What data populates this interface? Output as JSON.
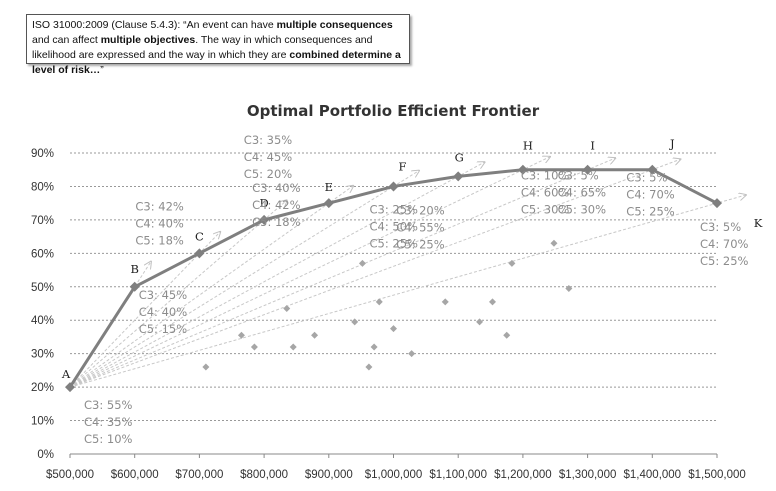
{
  "note": {
    "segments": [
      {
        "text": "ISO 31000:2009 (Clause 5.4.3): “An event can have ",
        "bold": false
      },
      {
        "text": "multiple consequences",
        "bold": true
      },
      {
        "text": " and can affect ",
        "bold": false
      },
      {
        "text": "multiple objectives",
        "bold": true
      },
      {
        "text": ". The way in which consequences and likelihood are expressed and the way in which they are ",
        "bold": false
      },
      {
        "text": "combined determine a level of risk…",
        "bold": true
      },
      {
        "text": "”",
        "bold": false
      }
    ]
  },
  "chart_data": {
    "type": "line",
    "title": "Optimal Portfolio Efficient Frontier",
    "xlabel": "",
    "ylabel": "",
    "xlim": [
      500000,
      1500000
    ],
    "ylim": [
      0,
      0.9
    ],
    "x_ticks": [
      500000,
      600000,
      700000,
      800000,
      900000,
      1000000,
      1100000,
      1200000,
      1300000,
      1400000,
      1500000
    ],
    "x_tick_labels": [
      "$500,000",
      "$600,000",
      "$700,000",
      "$800,000",
      "$900,000",
      "$1,000,000",
      "$1,100,000",
      "$1,200,000",
      "$1,300,000",
      "$1,400,000",
      "$1,500,000"
    ],
    "y_ticks": [
      0,
      0.1,
      0.2,
      0.3,
      0.4,
      0.5,
      0.6,
      0.7,
      0.8,
      0.9
    ],
    "y_tick_labels": [
      "0%",
      "10%",
      "20%",
      "30%",
      "40%",
      "50%",
      "60%",
      "70%",
      "80%",
      "90%"
    ],
    "grid": true,
    "colors": {
      "frontier": "#7f7f7f",
      "scatter": "#a6a6a6",
      "arrow": "#c8c8c8",
      "grid": "#999999"
    },
    "frontier": [
      {
        "label": "A",
        "x": 500000,
        "y": 0.2
      },
      {
        "label": "B",
        "x": 600000,
        "y": 0.5
      },
      {
        "label": "C",
        "x": 700000,
        "y": 0.6
      },
      {
        "label": "D",
        "x": 800000,
        "y": 0.7
      },
      {
        "label": "E",
        "x": 900000,
        "y": 0.75
      },
      {
        "label": "F",
        "x": 1000000,
        "y": 0.8
      },
      {
        "label": "G",
        "x": 1100000,
        "y": 0.83
      },
      {
        "label": "H",
        "x": 1200000,
        "y": 0.85
      },
      {
        "label": "I",
        "x": 1300000,
        "y": 0.85
      },
      {
        "label": "J",
        "x": 1400000,
        "y": 0.85
      },
      {
        "label": "K",
        "x": 1500000,
        "y": 0.75
      }
    ],
    "scatter": [
      {
        "x": 710000,
        "y": 0.26
      },
      {
        "x": 765000,
        "y": 0.355
      },
      {
        "x": 785000,
        "y": 0.32
      },
      {
        "x": 835000,
        "y": 0.435
      },
      {
        "x": 845000,
        "y": 0.32
      },
      {
        "x": 878000,
        "y": 0.355
      },
      {
        "x": 940000,
        "y": 0.395
      },
      {
        "x": 952000,
        "y": 0.57
      },
      {
        "x": 962000,
        "y": 0.26
      },
      {
        "x": 970000,
        "y": 0.32
      },
      {
        "x": 978000,
        "y": 0.455
      },
      {
        "x": 1000000,
        "y": 0.375
      },
      {
        "x": 1028000,
        "y": 0.3
      },
      {
        "x": 1080000,
        "y": 0.455
      },
      {
        "x": 1133000,
        "y": 0.395
      },
      {
        "x": 1153000,
        "y": 0.455
      },
      {
        "x": 1175000,
        "y": 0.355
      },
      {
        "x": 1183000,
        "y": 0.57
      },
      {
        "x": 1248000,
        "y": 0.63
      },
      {
        "x": 1271000,
        "y": 0.495
      }
    ],
    "arrow_targets": [
      "B",
      "C",
      "D",
      "E",
      "F",
      "G",
      "H",
      "I",
      "J",
      "K"
    ],
    "annotations": [
      {
        "at": "A",
        "lines": [
          "C3: 55%",
          "C4: 35%",
          "C5: 10%"
        ]
      },
      {
        "at": "B",
        "lines": [
          "C3: 45%",
          "C4: 40%",
          "C5: 15%"
        ]
      },
      {
        "at": "C",
        "lines": [
          "C3: 42%",
          "C4: 40%",
          "C5: 18%"
        ]
      },
      {
        "at": "D",
        "lines": [
          "C3: 40%",
          "C4: 42%",
          "C5: 18%"
        ]
      },
      {
        "at": "E",
        "lines": [
          "C3: 35%",
          "C4: 45%",
          "C5: 20%"
        ]
      },
      {
        "at": "F",
        "lines": [
          "C3: 25%",
          "C4: 50%",
          "C5: 25%"
        ]
      },
      {
        "at": "G",
        "lines": [
          "C3: 20%",
          "C4: 55%",
          "C5: 25%"
        ]
      },
      {
        "at": "H",
        "lines": [
          "C3: 10%",
          "C4: 60%",
          "C5: 30%"
        ]
      },
      {
        "at": "I",
        "lines": [
          "C3: 5%",
          "C4: 65%",
          "C5: 30%"
        ]
      },
      {
        "at": "J",
        "lines": [
          "C3: 5%",
          "C4: 70%",
          "C5: 25%"
        ]
      },
      {
        "at": "K",
        "lines": [
          "C3: 5%",
          "C4: 70%",
          "C5: 25%"
        ]
      }
    ]
  }
}
